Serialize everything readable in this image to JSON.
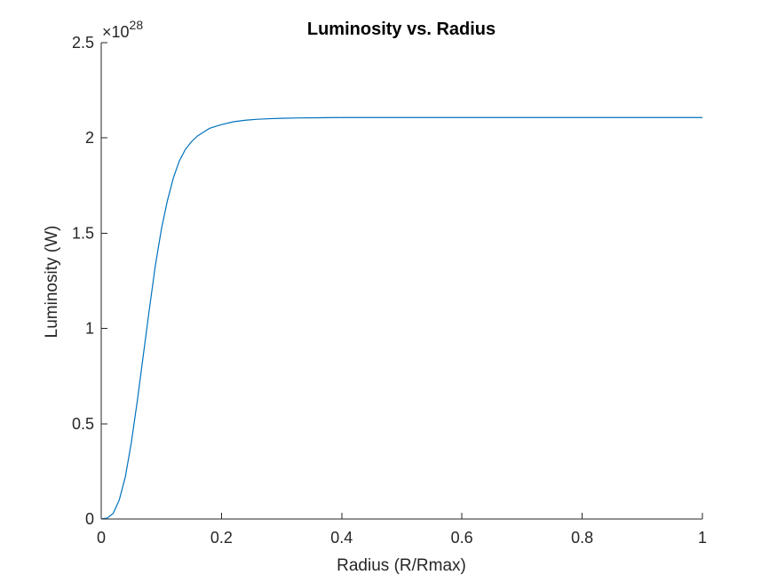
{
  "chart_data": {
    "type": "line",
    "title": "Luminosity vs. Radius",
    "xlabel": "Radius (R/Rmax)",
    "ylabel": "Luminosity (W)",
    "exponent": "×10",
    "exponent_power": "28",
    "xlim": [
      0,
      1
    ],
    "ylim": [
      0,
      2.5
    ],
    "xticks": [
      0,
      0.2,
      0.4,
      0.6,
      0.8,
      1
    ],
    "xtick_labels": [
      "0",
      "0.2",
      "0.4",
      "0.6",
      "0.8",
      "1"
    ],
    "yticks": [
      0,
      0.5,
      1,
      1.5,
      2,
      2.5
    ],
    "ytick_labels": [
      "0",
      "0.5",
      "1",
      "1.5",
      "2",
      "2.5"
    ],
    "grid": false,
    "series": [
      {
        "color": "#0072BD",
        "x": [
          0,
          0.01,
          0.02,
          0.03,
          0.04,
          0.05,
          0.06,
          0.07,
          0.08,
          0.09,
          0.1,
          0.11,
          0.12,
          0.13,
          0.14,
          0.15,
          0.16,
          0.17,
          0.18,
          0.19,
          0.2,
          0.22,
          0.24,
          0.26,
          0.28,
          0.3,
          0.33,
          0.36,
          0.4,
          0.45,
          0.5,
          0.6,
          0.7,
          0.8,
          0.9,
          1.0
        ],
        "y": [
          0,
          0.005,
          0.03,
          0.1,
          0.22,
          0.4,
          0.62,
          0.86,
          1.1,
          1.33,
          1.52,
          1.67,
          1.79,
          1.88,
          1.94,
          1.98,
          2.01,
          2.03,
          2.05,
          2.06,
          2.07,
          2.085,
          2.093,
          2.098,
          2.101,
          2.103,
          2.105,
          2.106,
          2.107,
          2.107,
          2.107,
          2.107,
          2.107,
          2.107,
          2.107,
          2.107
        ]
      }
    ]
  }
}
